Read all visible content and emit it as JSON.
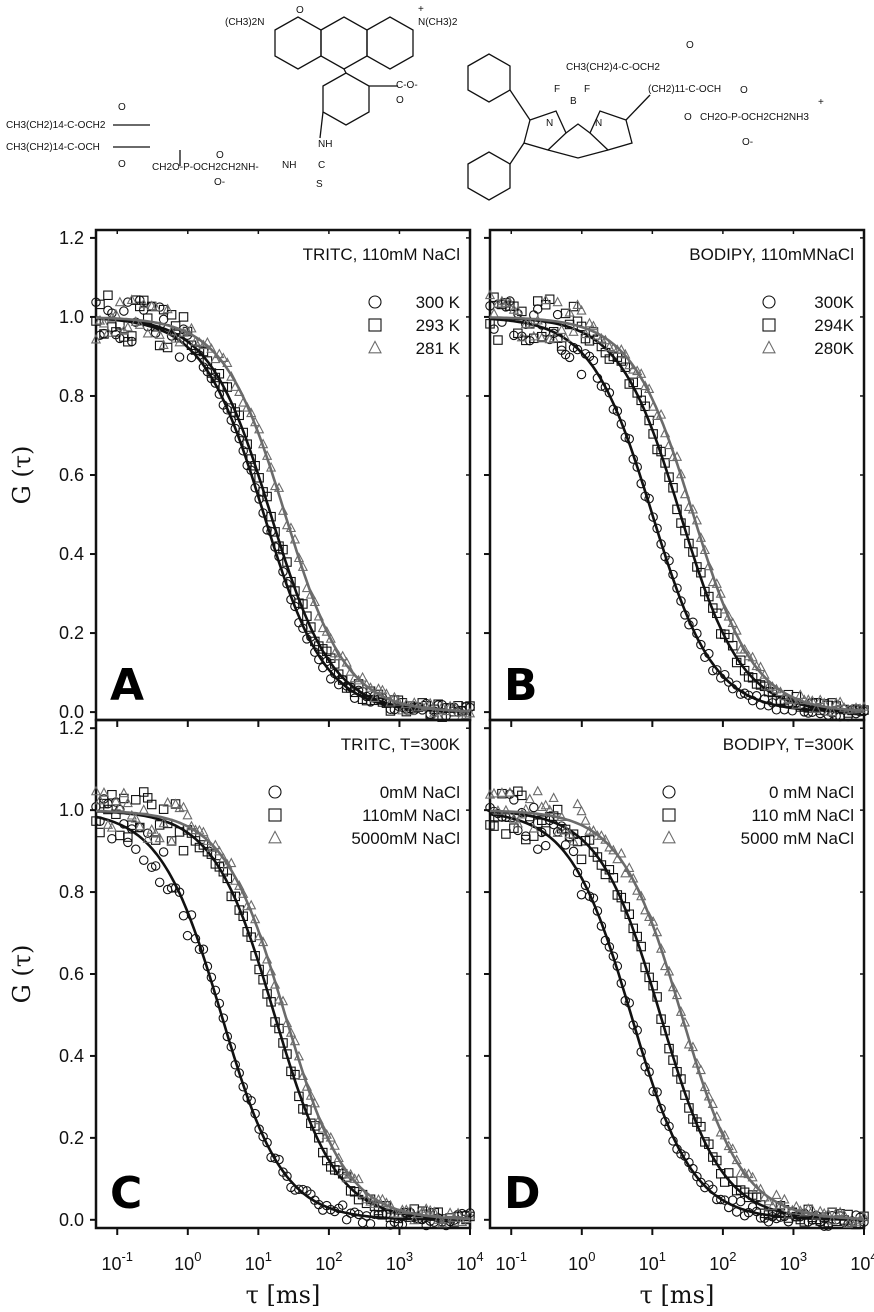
{
  "structures": {
    "tritc_labels": [
      "(CH3)2N",
      "N(CH3)2",
      "+",
      "O",
      "C-O-",
      "O",
      "NH",
      "C",
      "S",
      "NH",
      "CH3(CH2)14-C-OCH2",
      "CH3(CH2)14-C-OCH",
      "O",
      "O",
      "CH2O-P-OCH2CH2NH-",
      "O",
      "O-"
    ],
    "bodipy_labels": [
      "F",
      "B",
      "F",
      "N",
      "N",
      "CH3(CH2)4-C-OCH2",
      "(CH2)11-C-OCH",
      "O",
      "O",
      "CH2O-P-OCH2CH2NH3",
      "+",
      "O",
      "O-"
    ]
  },
  "x_axis_label": "τ [ms]",
  "y_axis_label": "G (τ)",
  "x_tick_labels": [
    "10-1",
    "100",
    "101",
    "102",
    "103",
    "104"
  ],
  "y_tick_labels": [
    "0.0",
    "0.2",
    "0.4",
    "0.6",
    "0.8",
    "1.0",
    "1.2"
  ],
  "colors": {
    "black": "#111111",
    "gray": "#6b6b6b"
  },
  "chart_data": [
    {
      "type": "scatter",
      "panel": "A",
      "title": "TRITC, 110mM NaCl",
      "xscale": "log",
      "xlim": [
        0.05,
        10000
      ],
      "ylim": [
        -0.02,
        1.22
      ],
      "xlabel": "",
      "ylabel": "G (τ)",
      "legend_position": "top-right",
      "series": [
        {
          "name": "300 K",
          "marker": "circle",
          "tau": 12,
          "fit_color": "black"
        },
        {
          "name": "293 K",
          "marker": "square",
          "tau": 15,
          "fit_color": "black"
        },
        {
          "name": "281 K",
          "marker": "triangle",
          "tau": 24,
          "fit_color": "gray"
        }
      ]
    },
    {
      "type": "scatter",
      "panel": "B",
      "title": "BODIPY, 110mMNaCl",
      "xscale": "log",
      "xlim": [
        0.05,
        10000
      ],
      "ylim": [
        -0.02,
        1.22
      ],
      "xlabel": "",
      "ylabel": "",
      "legend_position": "top-right",
      "series": [
        {
          "name": "300K",
          "marker": "circle",
          "tau": 10,
          "fit_color": "black"
        },
        {
          "name": "294K",
          "marker": "square",
          "tau": 25,
          "fit_color": "black"
        },
        {
          "name": "280K",
          "marker": "triangle",
          "tau": 38,
          "fit_color": "gray"
        }
      ]
    },
    {
      "type": "scatter",
      "panel": "C",
      "title": "TRITC, T=300K",
      "xscale": "log",
      "xlim": [
        0.05,
        10000
      ],
      "ylim": [
        -0.02,
        1.22
      ],
      "xlabel": "τ [ms]",
      "ylabel": "G (τ)",
      "legend_position": "top-right",
      "series": [
        {
          "name": "0mM NaCl",
          "marker": "circle",
          "tau": 3,
          "fit_color": "black"
        },
        {
          "name": "110mM NaCl",
          "marker": "square",
          "tau": 17,
          "fit_color": "black"
        },
        {
          "name": "5000mM NaCl",
          "marker": "triangle",
          "tau": 24,
          "fit_color": "gray"
        }
      ]
    },
    {
      "type": "scatter",
      "panel": "D",
      "title": "BODIPY, T=300K",
      "xscale": "log",
      "xlim": [
        0.05,
        10000
      ],
      "ylim": [
        -0.02,
        1.22
      ],
      "xlabel": "τ [ms]",
      "ylabel": "",
      "legend_position": "top-right",
      "series": [
        {
          "name": "0 mM NaCl",
          "marker": "circle",
          "tau": 5,
          "fit_color": "black"
        },
        {
          "name": "110 mM NaCl",
          "marker": "square",
          "tau": 13,
          "fit_color": "black"
        },
        {
          "name": "5000 mM NaCl",
          "marker": "triangle",
          "tau": 26,
          "fit_color": "gray"
        }
      ]
    }
  ]
}
